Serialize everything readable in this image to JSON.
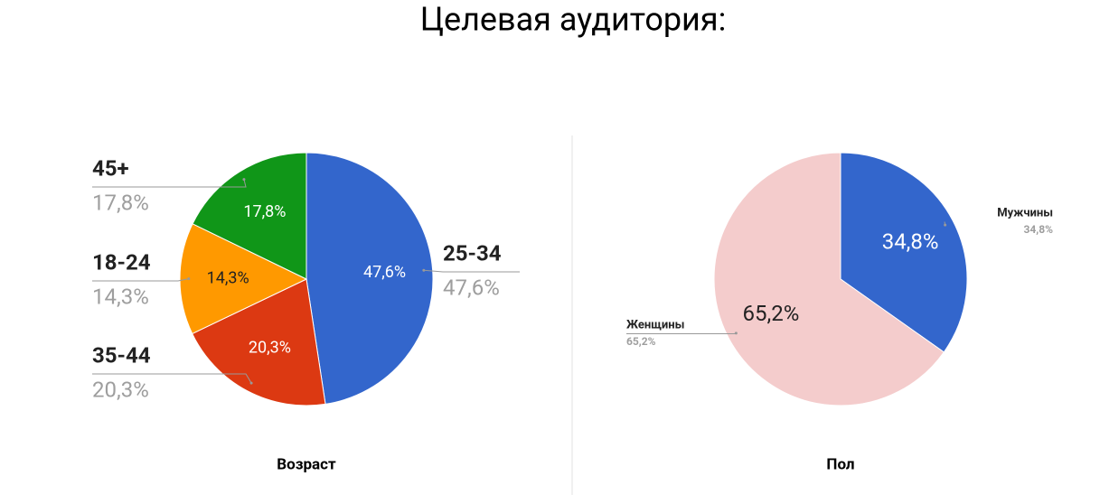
{
  "title": "Целевая аудитория:",
  "chart_data": [
    {
      "type": "pie",
      "title": "Возраст",
      "categories": [
        "25-34",
        "35-44",
        "18-24",
        "45+"
      ],
      "values": [
        47.6,
        20.3,
        14.3,
        17.8
      ],
      "value_labels": [
        "47,6%",
        "20,3%",
        "14,3%",
        "17,8%"
      ],
      "colors": [
        "#3366cc",
        "#dc3912",
        "#ff9900",
        "#109618"
      ]
    },
    {
      "type": "pie",
      "title": "Пол",
      "categories": [
        "Мужчины",
        "Женщины"
      ],
      "values": [
        34.8,
        65.2
      ],
      "value_labels": [
        "34,8%",
        "65,2%"
      ],
      "colors": [
        "#3366cc",
        "#f4cccc"
      ]
    }
  ]
}
